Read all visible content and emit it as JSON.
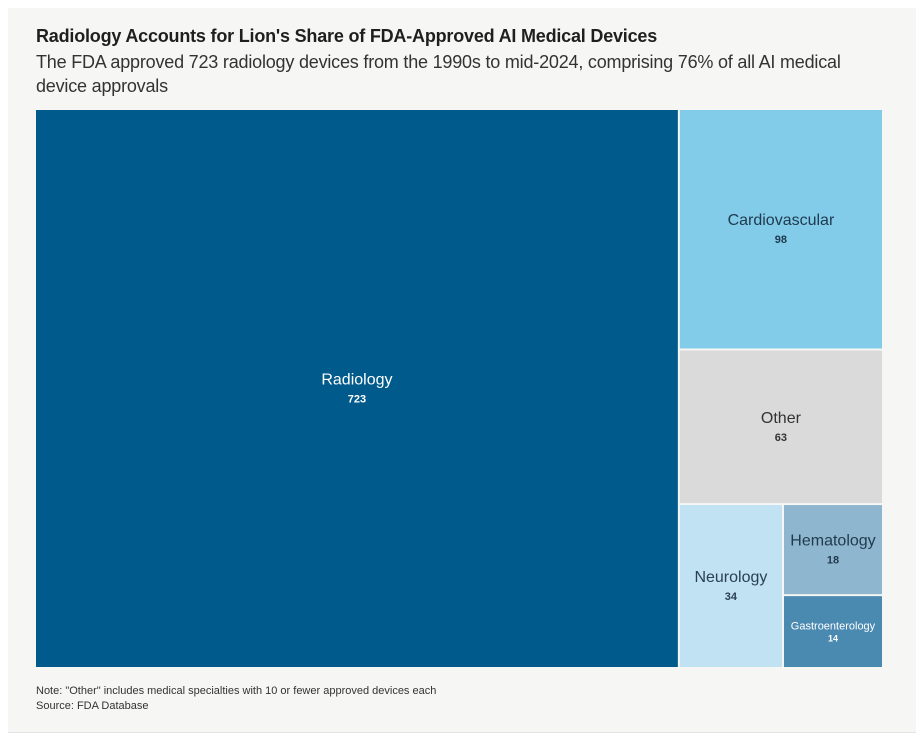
{
  "header": {
    "title": "Radiology Accounts for Lion's Share of FDA-Approved AI Medical Devices",
    "subtitle": "The FDA approved 723 radiology devices from the 1990s to mid-2024, comprising 76% of all AI medical device approvals"
  },
  "footer": {
    "note": "Note: \"Other\" includes medical specialties with 10 or fewer approved devices each",
    "source": "Source: FDA Database"
  },
  "chart_data": {
    "type": "treemap",
    "title": "Radiology Accounts for Lion's Share of FDA-Approved AI Medical Devices",
    "subtitle": "The FDA approved 723 radiology devices from the 1990s to mid-2024, comprising 76% of all AI medical device approvals",
    "unit": "approved AI medical devices",
    "items": [
      {
        "label": "Radiology",
        "value": 723,
        "color": "#005a8c",
        "text_color": "#ffffff"
      },
      {
        "label": "Cardiovascular",
        "value": 98,
        "color": "#82cbe9",
        "text_color": "#1f3a4d"
      },
      {
        "label": "Other",
        "value": 63,
        "color": "#dadada",
        "text_color": "#333333"
      },
      {
        "label": "Neurology",
        "value": 34,
        "color": "#c0e2f3",
        "text_color": "#2a3f50"
      },
      {
        "label": "Hematology",
        "value": 18,
        "color": "#8fb6cf",
        "text_color": "#1f3a4d"
      },
      {
        "label": "Gastroenterology",
        "value": 14,
        "color": "#4a89b0",
        "text_color": "#ffffff"
      }
    ],
    "source": "FDA Database",
    "note": "\"Other\" includes medical specialties with 10 or fewer approved devices each"
  }
}
